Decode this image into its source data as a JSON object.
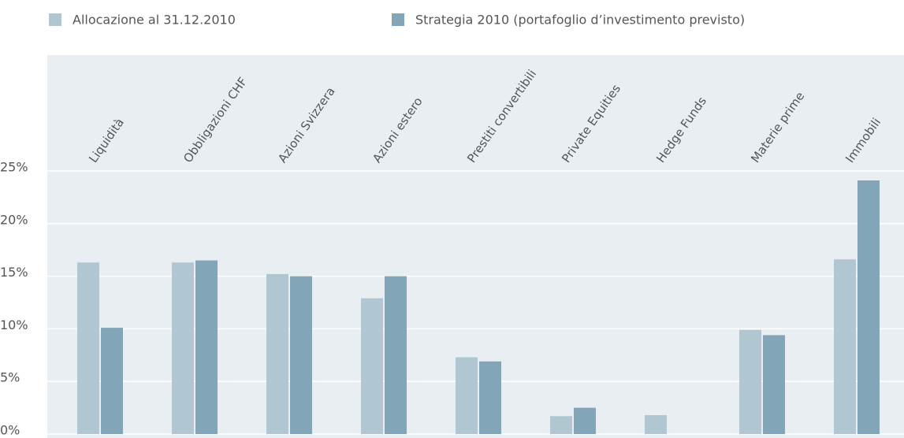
{
  "chart_data": {
    "type": "bar",
    "categories": [
      "Liquidità",
      "Obbligazioni CHF",
      "Azioni Svizzera",
      "Azioni estero",
      "Prestiti convertibili",
      "Private Equities",
      "Hedge Funds",
      "Materie prime",
      "Immobili"
    ],
    "series": [
      {
        "name": "Allocazione al 31.12.2010",
        "color": "#b0c6d1",
        "values": [
          16.3,
          16.3,
          15.2,
          12.9,
          7.3,
          1.7,
          1.8,
          9.9,
          16.6
        ]
      },
      {
        "name": "Strategia 2010 (portafoglio d’investimento previsto)",
        "color": "#82a6b8",
        "values": [
          10.1,
          16.5,
          15.0,
          15.0,
          6.9,
          2.5,
          0,
          9.4,
          24.1
        ]
      }
    ],
    "ylim": [
      0,
      25
    ],
    "yticks": [
      {
        "value": 0,
        "label": "0%"
      },
      {
        "value": 5,
        "label": "5%"
      },
      {
        "value": 10,
        "label": "10%"
      },
      {
        "value": 15,
        "label": "15%"
      },
      {
        "value": 20,
        "label": "20%"
      },
      {
        "value": 25,
        "label": "25%"
      }
    ],
    "grid": true
  }
}
